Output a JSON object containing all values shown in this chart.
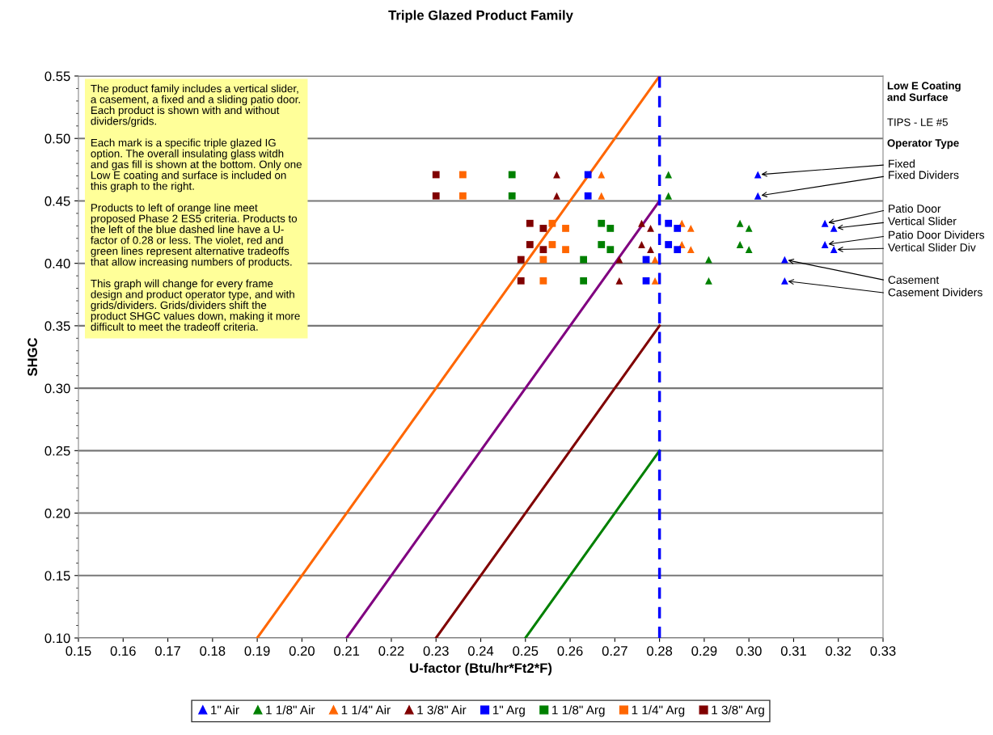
{
  "chart_data": {
    "type": "scatter",
    "title": "Triple Glazed Product Family",
    "xlabel": "U-factor (Btu/hr*Ft2*F)",
    "ylabel": "SHGC",
    "xlim": [
      0.15,
      0.33
    ],
    "xticks": [
      0.15,
      0.16,
      0.17,
      0.18,
      0.19,
      {
        "value": 0.2,
        "label": "0.20"
      },
      0.21,
      0.22,
      0.23,
      0.24,
      0.25,
      0.26,
      0.27,
      0.28,
      0.29,
      {
        "value": 0.3,
        "label": "0.30"
      },
      0.31,
      0.32,
      0.33
    ],
    "ylim": [
      0.1,
      0.55
    ],
    "yticks": [
      {
        "value": 0.1,
        "label": "0.10"
      },
      0.15,
      {
        "value": 0.2,
        "label": "0.20"
      },
      0.25,
      {
        "value": 0.3,
        "label": "0.30"
      },
      0.35,
      {
        "value": 0.4,
        "label": "0.40"
      },
      0.45,
      {
        "value": 0.5,
        "label": "0.50"
      },
      0.55
    ],
    "grid": "y",
    "legend": "bottom",
    "series": [
      {
        "name": "1\" Air",
        "color": "#0000ff",
        "marker": "triangle",
        "x": [
          0.302,
          0.302,
          0.317,
          0.319,
          0.317,
          0.319,
          0.308,
          0.308
        ],
        "values": [
          0.471,
          0.454,
          0.432,
          0.428,
          0.415,
          0.411,
          0.403,
          0.386
        ]
      },
      {
        "name": "1 1/8\" Air",
        "color": "#008000",
        "marker": "triangle",
        "x": [
          0.282,
          0.282,
          0.298,
          0.3,
          0.298,
          0.3,
          0.291,
          0.291
        ],
        "values": [
          0.471,
          0.454,
          0.432,
          0.428,
          0.415,
          0.411,
          0.403,
          0.386
        ]
      },
      {
        "name": "1 1/4\" Air",
        "color": "#ff6600",
        "marker": "triangle",
        "x": [
          0.267,
          0.267,
          0.285,
          0.287,
          0.285,
          0.287,
          0.279,
          0.279
        ],
        "values": [
          0.471,
          0.454,
          0.432,
          0.428,
          0.415,
          0.411,
          0.403,
          0.386
        ]
      },
      {
        "name": "1 3/8\" Air",
        "color": "#800000",
        "marker": "triangle",
        "x": [
          0.257,
          0.257,
          0.276,
          0.278,
          0.276,
          0.278,
          0.271,
          0.271
        ],
        "values": [
          0.471,
          0.454,
          0.432,
          0.428,
          0.415,
          0.411,
          0.403,
          0.386
        ]
      },
      {
        "name": "1\" Arg",
        "color": "#0000ff",
        "marker": "square",
        "x": [
          0.264,
          0.264,
          0.282,
          0.284,
          0.282,
          0.284,
          0.277,
          0.277
        ],
        "values": [
          0.471,
          0.454,
          0.432,
          0.428,
          0.415,
          0.411,
          0.403,
          0.386
        ]
      },
      {
        "name": "1 1/8\" Arg",
        "color": "#008000",
        "marker": "square",
        "x": [
          0.247,
          0.247,
          0.267,
          0.269,
          0.267,
          0.269,
          0.263,
          0.263
        ],
        "values": [
          0.471,
          0.454,
          0.432,
          0.428,
          0.415,
          0.411,
          0.403,
          0.386
        ]
      },
      {
        "name": "1 1/4\" Arg",
        "color": "#ff6600",
        "marker": "square",
        "x": [
          0.236,
          0.236,
          0.256,
          0.259,
          0.256,
          0.259,
          0.254,
          0.254
        ],
        "values": [
          0.471,
          0.454,
          0.432,
          0.428,
          0.415,
          0.411,
          0.403,
          0.386
        ]
      },
      {
        "name": "1 3/8\" Arg",
        "color": "#800000",
        "marker": "square",
        "x": [
          0.23,
          0.23,
          0.251,
          0.254,
          0.251,
          0.254,
          0.249,
          0.249
        ],
        "values": [
          0.471,
          0.454,
          0.432,
          0.428,
          0.415,
          0.411,
          0.403,
          0.386
        ]
      },
      {
        "type": "line",
        "color": "#ff6600",
        "x": [
          0.19,
          0.28
        ],
        "values": [
          0.1,
          0.55
        ]
      },
      {
        "type": "line",
        "color": "#800080",
        "x": [
          0.21,
          0.28
        ],
        "values": [
          0.1,
          0.45
        ]
      },
      {
        "type": "line",
        "color": "#800000",
        "x": [
          0.23,
          0.28
        ],
        "values": [
          0.1,
          0.35
        ]
      },
      {
        "type": "line",
        "color": "#008000",
        "x": [
          0.25,
          0.28
        ],
        "values": [
          0.1,
          0.25
        ]
      }
    ],
    "ref_lines": [
      {
        "axis": "x",
        "value": 0.28,
        "color": "#0000ff",
        "line_style": "dashed"
      }
    ],
    "annotations": [
      "The product family includes a vertical slider,\na casement, a fixed and a sliding patio door.\nEach product is shown with and without\ndividers/grids.\n\nEach mark is a specific triple glazed IG\noption. The overall insulating glass witdh\nand gas fill is shown at the bottom. Only one\nLow E coating and surface is included on\nthis graph to the right.\n\nProducts to left of orange line meet\nproposed Phase 2 ES5 criteria. Products to\nthe left of the blue dashed line have a U-\nfactor of 0.28 or less. The violet, red and\ngreen lines represent alternative tradeoffs\nthat allow increasing numbers of products.\n\nThis graph will change for every frame\ndesign and product operator type, and with\ngrids/dividers. Grids/dividers shift the\nproduct SHGC values down, making it more\ndifficult to meet the tradeoff criteria.",
      "Low E Coating\nand Surface",
      "TIPS - LE #5",
      "Operator Type",
      {
        "text": "Fixed",
        "x": 0.302,
        "y": 0.471
      },
      {
        "text": "Fixed Dividers",
        "x": 0.302,
        "y": 0.454
      },
      {
        "text": "Patio Door",
        "x": 0.317,
        "y": 0.432
      },
      {
        "text": "Vertical Slider",
        "x": 0.319,
        "y": 0.428
      },
      {
        "text": "Patio Door Dividers",
        "x": 0.317,
        "y": 0.415
      },
      {
        "text": "Vertical Slider Div",
        "x": 0.319,
        "y": 0.411
      },
      {
        "text": "Casement",
        "x": 0.308,
        "y": 0.403
      },
      {
        "text": "Casement Dividers",
        "x": 0.308,
        "y": 0.386
      }
    ]
  }
}
